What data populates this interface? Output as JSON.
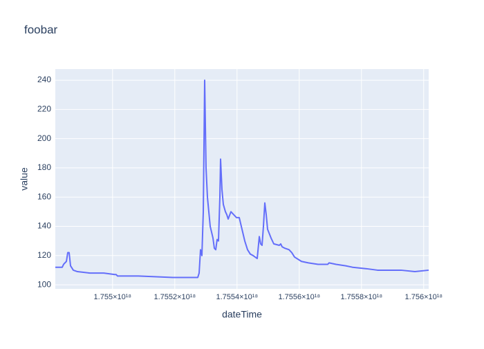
{
  "chart_data": {
    "type": "line",
    "title": "foobar",
    "x_label": "dateTime",
    "y_label": "value",
    "color": "#636efa",
    "grid": true,
    "x": [
      1.754816e+18,
      1.7548382e+18,
      1.7548427e+18,
      1.7548471e+18,
      1.7548516e+18,
      1.754856e+18,
      1.7548604e+18,
      1.7548649e+18,
      1.7548738e+18,
      1.7548871e+18,
      1.7549271e+18,
      1.7549716e+18,
      1.7550071e+18,
      1.7550116e+18,
      1.755016e+18,
      1.7550827e+18,
      1.7551938e+18,
      1.7552738e+18,
      1.7552782e+18,
      1.7552827e+18,
      1.7552871e+18,
      1.7552916e+18,
      1.755296e+18,
      1.7553004e+18,
      1.7553049e+18,
      1.7553093e+18,
      1.7553138e+18,
      1.7553227e+18,
      1.7553271e+18,
      1.7553316e+18,
      1.755336e+18,
      1.7553404e+18,
      1.7553449e+18,
      1.7553471e+18,
      1.7553516e+18,
      1.755356e+18,
      1.7553627e+18,
      1.7553671e+18,
      1.7553716e+18,
      1.7553804e+18,
      1.7553893e+18,
      1.7553982e+18,
      1.7554071e+18,
      1.755416e+18,
      1.7554249e+18,
      1.7554338e+18,
      1.7554427e+18,
      1.7554516e+18,
      1.7554649e+18,
      1.7554716e+18,
      1.755476e+18,
      1.7554804e+18,
      1.7554849e+18,
      1.7554893e+18,
      1.7554938e+18,
      1.7554982e+18,
      1.7555093e+18,
      1.7555182e+18,
      1.755536e+18,
      1.7555404e+18,
      1.7555449e+18,
      1.7555538e+18,
      1.7555671e+18,
      1.755576e+18,
      1.7555849e+18,
      1.7556071e+18,
      1.7556293e+18,
      1.7556604e+18,
      1.7556916e+18,
      1.755696e+18,
      1.7557182e+18,
      1.7557493e+18,
      1.7557716e+18,
      1.755816e+18,
      1.7558516e+18,
      1.7558827e+18,
      1.7559271e+18,
      1.7559716e+18,
      1.756016e+18
    ],
    "values": [
      112,
      112,
      114,
      115,
      116,
      122,
      122,
      113,
      110,
      109,
      108,
      108,
      107,
      107,
      106,
      106,
      105,
      105,
      108,
      124,
      120,
      150,
      240,
      180,
      160,
      150,
      140,
      132,
      125,
      124,
      131,
      130,
      160,
      186,
      165,
      155,
      150,
      148,
      145,
      150,
      148,
      146,
      146,
      138,
      130,
      124,
      121,
      120,
      118,
      133,
      128,
      127,
      140,
      156,
      148,
      138,
      132,
      128,
      127,
      128,
      126,
      125,
      124,
      122,
      119,
      116,
      115,
      114,
      114,
      115,
      114,
      113,
      112,
      111,
      110,
      110,
      110,
      109,
      110
    ],
    "xlim": [
      1.754816e+18,
      1.756016e+18
    ],
    "xticks": [
      {
        "value": 1.755e+18,
        "label": "1.755×10¹⁸"
      },
      {
        "value": 1.7552e+18,
        "label": "1.7552×10¹⁸"
      },
      {
        "value": 1.7554e+18,
        "label": "1.7554×10¹⁸"
      },
      {
        "value": 1.7556e+18,
        "label": "1.7556×10¹⁸"
      },
      {
        "value": 1.7558e+18,
        "label": "1.7558×10¹⁸"
      },
      {
        "value": 1.756e+18,
        "label": "1.756×10¹⁸"
      }
    ],
    "ylim": [
      97.2,
      247.6
    ],
    "yticks": [
      100,
      120,
      140,
      160,
      180,
      200,
      220,
      240
    ]
  }
}
